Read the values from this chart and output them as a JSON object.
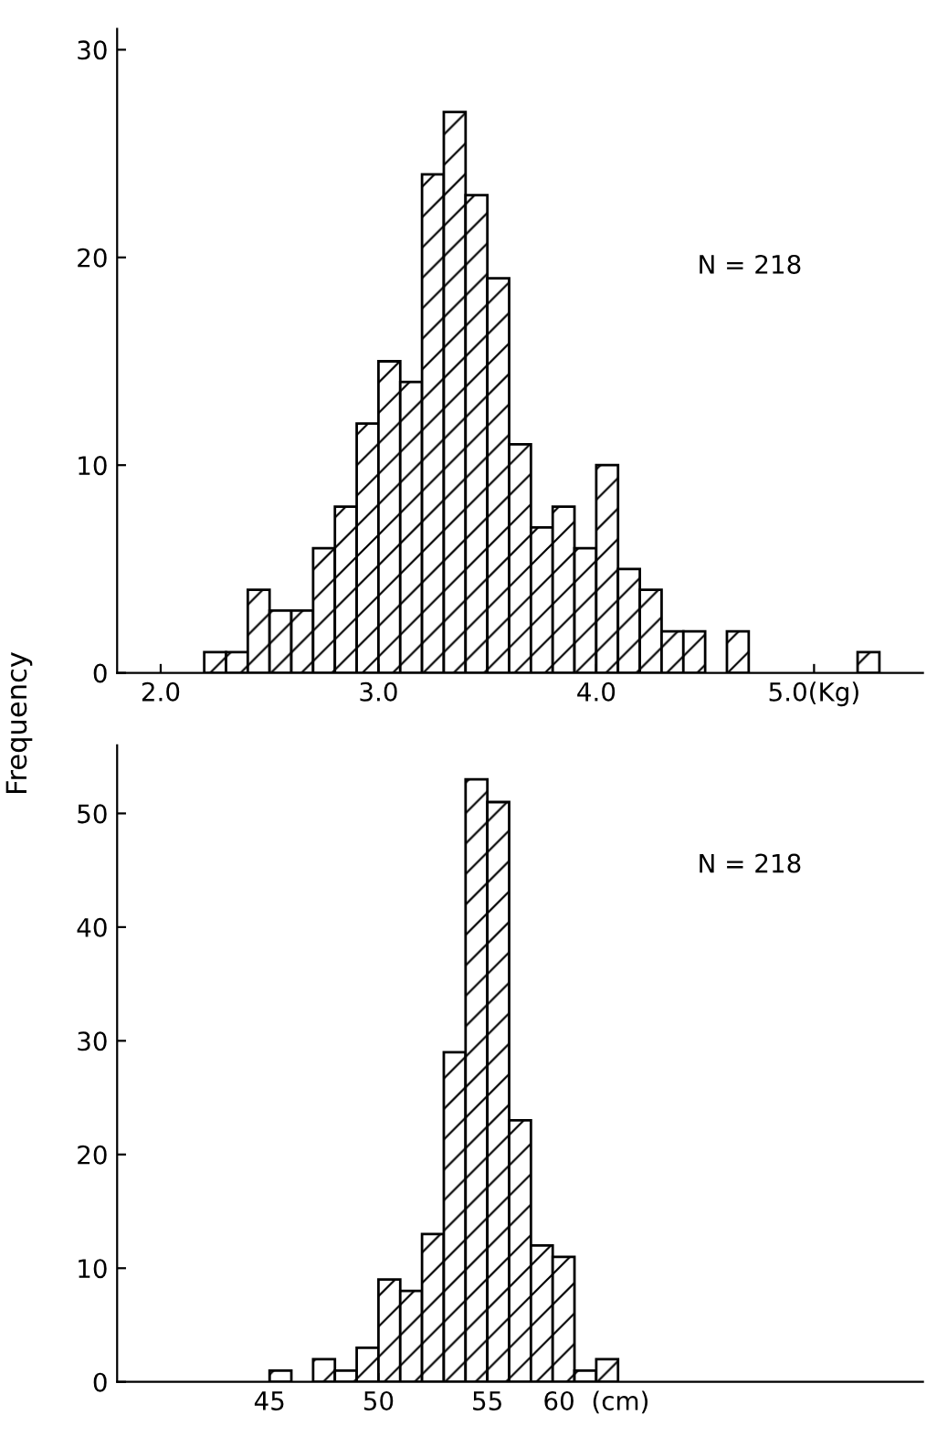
{
  "chart_data": [
    {
      "type": "histogram",
      "ylabel": "Frequency",
      "annotations": [
        "N = 218"
      ],
      "color": "#000000",
      "bins": [
        2.2,
        2.3,
        2.4,
        2.5,
        2.6,
        2.7,
        2.8,
        2.9,
        3.0,
        3.1,
        3.2,
        3.3,
        3.4,
        3.5,
        3.6,
        3.7,
        3.8,
        3.9,
        4.0,
        4.1,
        4.2,
        4.3,
        4.4,
        4.5,
        4.6,
        4.7,
        4.8,
        4.9,
        5.0,
        5.1,
        5.2,
        5.3
      ],
      "values": [
        1,
        1,
        4,
        3,
        3,
        6,
        8,
        12,
        15,
        14,
        24,
        27,
        23,
        19,
        11,
        7,
        8,
        6,
        10,
        5,
        4,
        2,
        2,
        0,
        2,
        0,
        0,
        0,
        0,
        0,
        1
      ],
      "xlim": [
        1.8,
        5.5
      ],
      "xticks": [
        {
          "value": 2.0,
          "label": "2.0"
        },
        {
          "value": 3.0,
          "label": "3.0"
        },
        {
          "value": 4.0,
          "label": "4.0"
        },
        {
          "value": 5.0,
          "label": "5.0(Kg)"
        }
      ],
      "ylim": [
        0,
        31
      ],
      "yticks": [
        0,
        10,
        20,
        30
      ],
      "grid": false,
      "legend": false
    },
    {
      "type": "histogram",
      "annotations": [
        "N = 218"
      ],
      "color": "#000000",
      "bins": [
        45,
        46,
        47,
        48,
        49,
        50,
        51,
        52,
        53,
        54,
        55,
        56,
        57,
        58,
        59,
        60,
        61
      ],
      "values": [
        1,
        0,
        2,
        1,
        3,
        9,
        8,
        13,
        29,
        53,
        51,
        23,
        12,
        11,
        1,
        2
      ],
      "xlim": [
        38,
        75
      ],
      "xticks": [
        45,
        50,
        55,
        {
          "value": 60,
          "label": "60  (cm)"
        }
      ],
      "ylim": [
        0,
        56
      ],
      "yticks": [
        0,
        10,
        20,
        30,
        40,
        50
      ],
      "grid": false,
      "legend": false
    }
  ]
}
